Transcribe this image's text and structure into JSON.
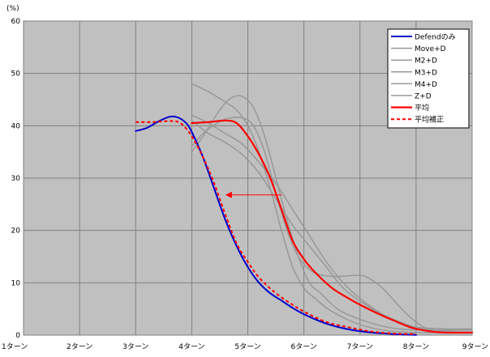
{
  "chart_data": {
    "type": "line",
    "y_unit": "(%)",
    "x": [
      "1ターン",
      "2ターン",
      "3ターン",
      "4ターン",
      "5ターン",
      "6ターン",
      "7ターン",
      "8ターン",
      "9ターン"
    ],
    "ylim": [
      0,
      60
    ],
    "yticks": [
      0,
      10,
      20,
      30,
      40,
      50,
      60
    ],
    "xlim": [
      1,
      9
    ],
    "grid": true,
    "legend_position": "top-right",
    "colors": {
      "plot_bg": "#c0c0c0",
      "grid": "#808080",
      "defend": "#0000cc",
      "gray_series": "#989898",
      "avg": "#ff0000"
    },
    "series": [
      {
        "name": "Defendのみ",
        "color": "#0000cc",
        "dash": false,
        "width": 2,
        "points": [
          [
            3,
            39
          ],
          [
            3.2,
            39.6
          ],
          [
            3.4,
            40.8
          ],
          [
            3.6,
            41.7
          ],
          [
            3.75,
            41.6
          ],
          [
            3.9,
            40.5
          ],
          [
            4.0,
            38.8
          ],
          [
            4.2,
            34
          ],
          [
            4.4,
            28
          ],
          [
            4.6,
            22
          ],
          [
            4.8,
            17
          ],
          [
            5.0,
            13
          ],
          [
            5.2,
            10
          ],
          [
            5.4,
            8
          ],
          [
            5.6,
            6.6
          ],
          [
            5.8,
            5.2
          ],
          [
            6.0,
            4
          ],
          [
            6.4,
            2.2
          ],
          [
            6.8,
            1.1
          ],
          [
            7.2,
            0.5
          ],
          [
            7.6,
            0.2
          ],
          [
            8.0,
            0.05
          ]
        ]
      },
      {
        "name": "Move+D",
        "color": "#989898",
        "dash": false,
        "width": 1.5,
        "points": [
          [
            4,
            48
          ],
          [
            4.3,
            46.5
          ],
          [
            4.6,
            44.5
          ],
          [
            4.8,
            43
          ],
          [
            5.0,
            40
          ],
          [
            5.2,
            35
          ],
          [
            5.4,
            28
          ],
          [
            5.6,
            20
          ],
          [
            5.8,
            13
          ],
          [
            6.0,
            9
          ],
          [
            6.2,
            7
          ],
          [
            6.5,
            4.5
          ],
          [
            7.0,
            2
          ],
          [
            7.5,
            0.8
          ],
          [
            8.0,
            0.5
          ],
          [
            9.0,
            0.5
          ]
        ]
      },
      {
        "name": "M2+D",
        "color": "#989898",
        "dash": false,
        "width": 1.5,
        "points": [
          [
            4,
            35
          ],
          [
            4.2,
            38
          ],
          [
            4.5,
            43
          ],
          [
            4.7,
            45.3
          ],
          [
            4.9,
            45.6
          ],
          [
            5.1,
            43.5
          ],
          [
            5.3,
            38
          ],
          [
            5.5,
            30
          ],
          [
            5.7,
            22
          ],
          [
            5.9,
            15
          ],
          [
            6.1,
            10
          ],
          [
            6.3,
            8
          ],
          [
            6.6,
            5
          ],
          [
            7.0,
            3
          ],
          [
            7.5,
            1.5
          ],
          [
            8.0,
            1.0
          ],
          [
            9.0,
            1.0
          ]
        ]
      },
      {
        "name": "M3+D",
        "color": "#989898",
        "dash": false,
        "width": 1.5,
        "points": [
          [
            4,
            42
          ],
          [
            4.3,
            40.5
          ],
          [
            4.6,
            38.5
          ],
          [
            4.9,
            36.5
          ],
          [
            5.2,
            33
          ],
          [
            5.5,
            29
          ],
          [
            5.8,
            24
          ],
          [
            6.1,
            19
          ],
          [
            6.4,
            14
          ],
          [
            6.7,
            10
          ],
          [
            7.0,
            7
          ],
          [
            7.4,
            4
          ],
          [
            7.8,
            2
          ],
          [
            8.0,
            1.5
          ],
          [
            8.5,
            1.2
          ],
          [
            9.0,
            1.2
          ]
        ]
      },
      {
        "name": "M4+D",
        "color": "#989898",
        "dash": false,
        "width": 1.5,
        "points": [
          [
            4,
            36
          ],
          [
            4.2,
            38.5
          ],
          [
            4.5,
            40.8
          ],
          [
            4.7,
            41.5
          ],
          [
            4.9,
            41.5
          ],
          [
            5.1,
            40
          ],
          [
            5.3,
            35
          ],
          [
            5.5,
            27
          ],
          [
            5.7,
            20
          ],
          [
            5.9,
            15
          ],
          [
            6.1,
            12.5
          ],
          [
            6.3,
            11.5
          ],
          [
            6.6,
            11.2
          ],
          [
            6.9,
            11.4
          ],
          [
            7.1,
            11.2
          ],
          [
            7.4,
            9
          ],
          [
            7.7,
            5.5
          ],
          [
            8.0,
            2.5
          ],
          [
            8.3,
            1
          ],
          [
            9.0,
            0.5
          ]
        ]
      },
      {
        "name": "Z+D",
        "color": "#989898",
        "dash": false,
        "width": 1.5,
        "points": [
          [
            4,
            41
          ],
          [
            4.3,
            38.5
          ],
          [
            4.6,
            36.8
          ],
          [
            4.9,
            34.5
          ],
          [
            5.2,
            31
          ],
          [
            5.5,
            26
          ],
          [
            5.8,
            21
          ],
          [
            6.1,
            17
          ],
          [
            6.4,
            13
          ],
          [
            6.7,
            9
          ],
          [
            7.0,
            6.5
          ],
          [
            7.3,
            4.5
          ],
          [
            7.6,
            3
          ],
          [
            8.0,
            1.5
          ],
          [
            8.5,
            0.8
          ],
          [
            9.0,
            0.5
          ]
        ]
      },
      {
        "name": "平均",
        "color": "#ff0000",
        "dash": false,
        "width": 2.2,
        "points": [
          [
            4,
            40.5
          ],
          [
            4.3,
            40.7
          ],
          [
            4.6,
            41
          ],
          [
            4.8,
            40.5
          ],
          [
            5.0,
            38
          ],
          [
            5.2,
            34.5
          ],
          [
            5.4,
            30
          ],
          [
            5.6,
            24
          ],
          [
            5.8,
            18
          ],
          [
            6.0,
            14.5
          ],
          [
            6.2,
            12
          ],
          [
            6.5,
            9
          ],
          [
            6.8,
            7
          ],
          [
            7.0,
            5.8
          ],
          [
            7.3,
            4.2
          ],
          [
            7.6,
            2.8
          ],
          [
            7.9,
            1.5
          ],
          [
            8.2,
            0.8
          ],
          [
            8.5,
            0.5
          ],
          [
            9.0,
            0.5
          ]
        ]
      },
      {
        "name": "平均補正",
        "color": "#ff0000",
        "dash": true,
        "width": 2,
        "points": [
          [
            3,
            40.7
          ],
          [
            3.3,
            40.7
          ],
          [
            3.6,
            40.9
          ],
          [
            3.8,
            40.5
          ],
          [
            4.0,
            38
          ],
          [
            4.2,
            34
          ],
          [
            4.4,
            29
          ],
          [
            4.6,
            23
          ],
          [
            4.8,
            17.5
          ],
          [
            5.0,
            14
          ],
          [
            5.2,
            11
          ],
          [
            5.5,
            8
          ],
          [
            5.8,
            5.8
          ],
          [
            6.0,
            4.5
          ],
          [
            6.4,
            2.5
          ],
          [
            6.8,
            1.5
          ],
          [
            7.2,
            0.7
          ],
          [
            7.6,
            0.3
          ],
          [
            8.0,
            0.2
          ]
        ]
      }
    ],
    "annotations": [
      {
        "type": "arrow",
        "from": [
          5.6,
          26.8
        ],
        "to": [
          4.6,
          26.8
        ],
        "color": "#ff0000"
      }
    ]
  }
}
